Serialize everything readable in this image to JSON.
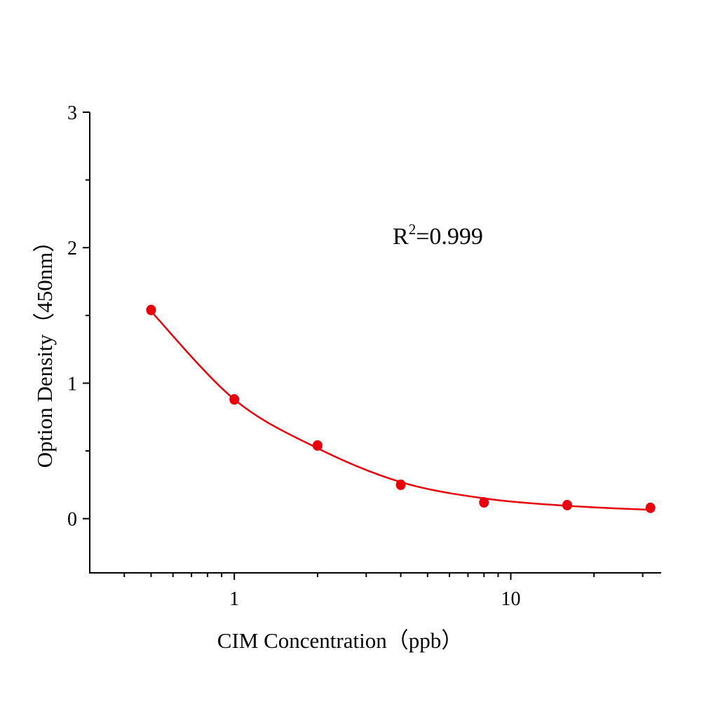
{
  "chart_data": {
    "type": "scatter",
    "title": "",
    "xlabel": "CIM Concentration（ppb）",
    "ylabel": "Option Density（450nm）",
    "xscale": "log",
    "xlim": [
      0.3,
      35
    ],
    "ylim": [
      -0.4,
      3
    ],
    "xticks": [
      1,
      10
    ],
    "xtick_labels": [
      "1",
      "10"
    ],
    "yticks": [
      0,
      1,
      2,
      3
    ],
    "ytick_labels": [
      "0",
      "1",
      "2",
      "3"
    ],
    "grid": false,
    "annotation": {
      "base": "R",
      "sup": "2",
      "rest": "=0.999"
    },
    "color": "#e8000b",
    "series": [
      {
        "x": [
          0.5,
          1,
          2,
          4,
          8,
          16,
          32
        ],
        "y": [
          1.54,
          0.88,
          0.54,
          0.25,
          0.12,
          0.1,
          0.08
        ]
      }
    ],
    "fit_curve": {
      "x": [
        0.5,
        1,
        2,
        4,
        8,
        16,
        32
      ],
      "y": [
        1.53,
        0.88,
        0.52,
        0.27,
        0.15,
        0.095,
        0.065
      ]
    }
  }
}
